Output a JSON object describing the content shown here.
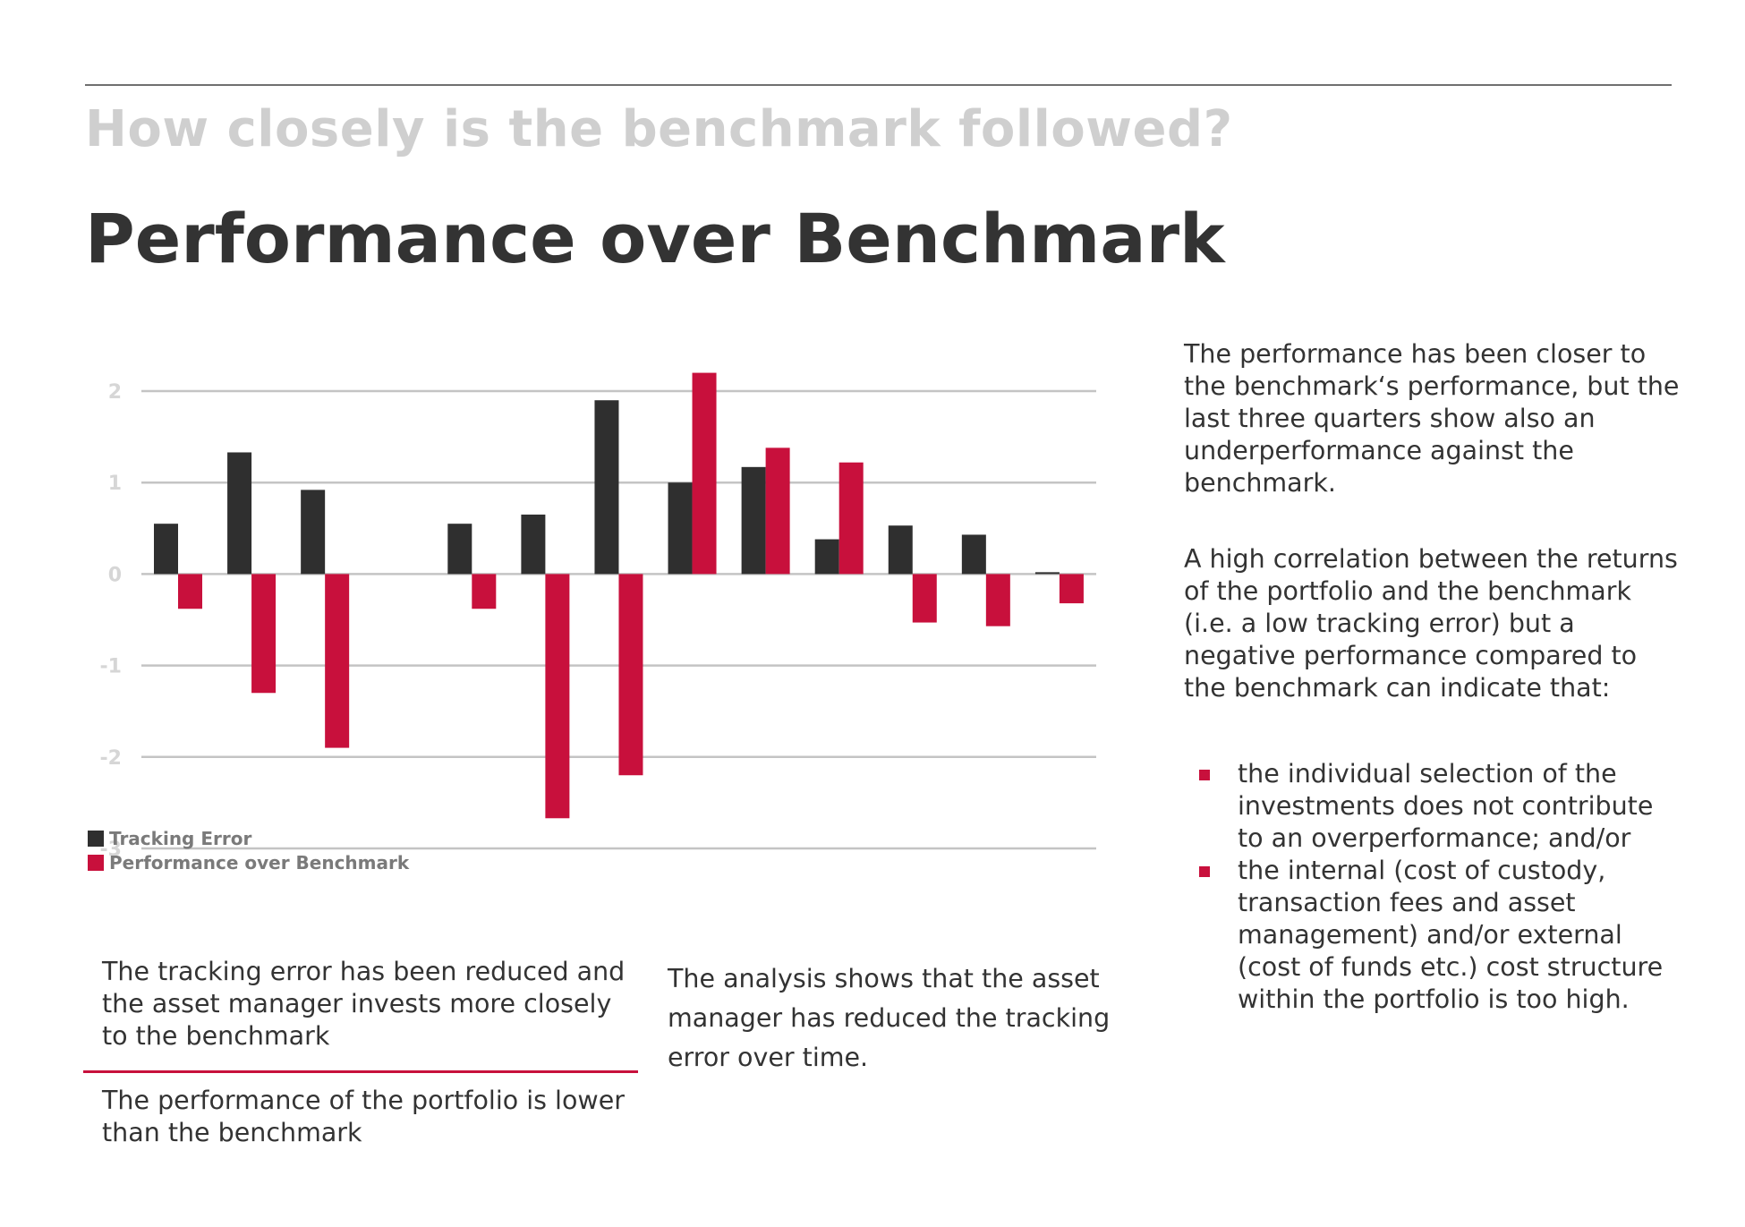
{
  "header": {
    "subtitle": "How closely is the benchmark followed?",
    "title": "Performance over Benchmark"
  },
  "chart_data": {
    "type": "bar",
    "categories": [
      "",
      "",
      "",
      "",
      "",
      "",
      "",
      "",
      "",
      "",
      "",
      "",
      ""
    ],
    "series": [
      {
        "name": "Tracking Error",
        "color": "#2f2f2f",
        "values": [
          0.55,
          1.33,
          0.92,
          null,
          0.55,
          0.65,
          1.9,
          1.0,
          1.17,
          0.38,
          0.53,
          0.43,
          0.02
        ]
      },
      {
        "name": "Performance over Benchmark",
        "color": "#c8103c",
        "values": [
          -0.38,
          -1.3,
          -1.9,
          null,
          -0.38,
          -2.67,
          -2.2,
          2.2,
          1.38,
          1.22,
          -0.53,
          -0.57,
          -0.32
        ]
      }
    ],
    "y_ticks": [
      "2",
      "1",
      "0",
      "-1",
      "-2",
      "-3"
    ],
    "ylim": [
      -3,
      2
    ],
    "grid": true,
    "legend_position": "bottom-left",
    "title": "",
    "xlabel": "",
    "ylabel": ""
  },
  "side_text": {
    "paragraph1": "The performance has been closer to the benchmark‘s performance, but the last three quarters show also an underperformance against the benchmark.",
    "paragraph2": "A high correlation between the returns of the portfolio and the benchmark (i.e.  a low tracking error) but a negative performance compared to the benchmark can indicate that:",
    "bullets": [
      "the individual selection of the investments does not contribute to an overperformance; and/or",
      "the internal (cost of custody, transaction fees and asset management) and/or external (cost of funds etc.) cost structure within the portfolio is too high."
    ]
  },
  "notes": {
    "tracking_note": "The tracking error has been reduced and the asset manager invests more closely to the benchmark",
    "performance_note": "The performance of the portfolio is lower than the benchmark",
    "analysis_note": "The analysis shows that the asset manager has reduced the tracking error over time."
  },
  "colors": {
    "accent_red": "#c8103c",
    "dark_bar": "#2f2f2f",
    "subtitle_gray": "#cfcfcf"
  }
}
